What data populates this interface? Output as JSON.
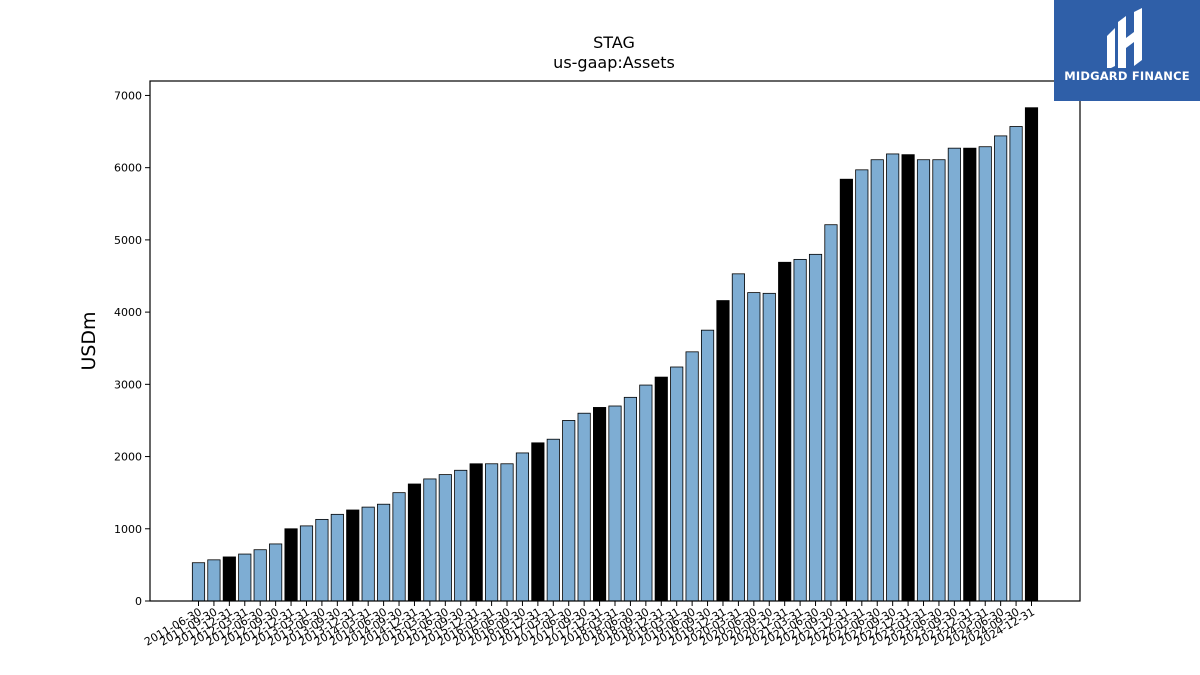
{
  "logo": {
    "text": "MIDGARD FINANCE",
    "icon": "midgard-logo-icon",
    "background": "#2f5fa8"
  },
  "chart_data": {
    "type": "bar",
    "title": "STAG",
    "subtitle": "us-gaap:Assets",
    "ylabel": "USDm",
    "xlabel": "",
    "ylim": [
      0,
      7200
    ],
    "yticks": [
      0,
      1000,
      2000,
      3000,
      4000,
      5000,
      6000,
      7000
    ],
    "grid": false,
    "colors": {
      "quarter": "#7eadd3",
      "year_end": "#000000",
      "edge": "#000000"
    },
    "categories": [
      "2011-06-30",
      "2011-09-30",
      "2011-12-31",
      "2012-03-31",
      "2012-06-30",
      "2012-09-30",
      "2012-12-31",
      "2013-03-31",
      "2013-06-30",
      "2013-09-30",
      "2013-12-31",
      "2014-03-31",
      "2014-06-30",
      "2014-09-30",
      "2014-12-31",
      "2015-03-31",
      "2015-06-30",
      "2015-09-30",
      "2015-12-31",
      "2016-03-31",
      "2016-06-30",
      "2016-09-30",
      "2016-12-31",
      "2017-03-31",
      "2017-06-30",
      "2017-09-30",
      "2017-12-31",
      "2018-03-31",
      "2018-06-30",
      "2018-09-30",
      "2018-12-31",
      "2019-03-31",
      "2019-06-30",
      "2019-09-30",
      "2019-12-31",
      "2020-03-31",
      "2020-06-30",
      "2020-09-30",
      "2020-12-31",
      "2021-03-31",
      "2021-06-30",
      "2021-09-30",
      "2021-12-31",
      "2022-03-31",
      "2022-06-30",
      "2022-09-30",
      "2022-12-31",
      "2023-03-31",
      "2023-06-30",
      "2023-09-30",
      "2023-12-31",
      "2024-03-31",
      "2024-06-30",
      "2024-09-30",
      "2024-12-31"
    ],
    "values": [
      530,
      570,
      610,
      650,
      710,
      790,
      1000,
      1040,
      1130,
      1200,
      1260,
      1300,
      1340,
      1500,
      1620,
      1690,
      1750,
      1810,
      1900,
      1900,
      1900,
      2050,
      2190,
      2240,
      2500,
      2600,
      2680,
      2700,
      2820,
      2990,
      3100,
      3240,
      3450,
      3750,
      4160,
      4530,
      4270,
      4260,
      4690,
      4730,
      4800,
      5210,
      5840,
      5970,
      6110,
      6190,
      6180,
      6110,
      6110,
      6270,
      6270,
      6290,
      6440,
      6570,
      6830
    ],
    "year_end_flags": [
      false,
      false,
      true,
      false,
      false,
      false,
      true,
      false,
      false,
      false,
      true,
      false,
      false,
      false,
      true,
      false,
      false,
      false,
      true,
      false,
      false,
      false,
      true,
      false,
      false,
      false,
      true,
      false,
      false,
      false,
      true,
      false,
      false,
      false,
      true,
      false,
      false,
      false,
      true,
      false,
      false,
      false,
      true,
      false,
      false,
      false,
      true,
      false,
      false,
      false,
      true,
      false,
      false,
      false,
      true
    ]
  }
}
